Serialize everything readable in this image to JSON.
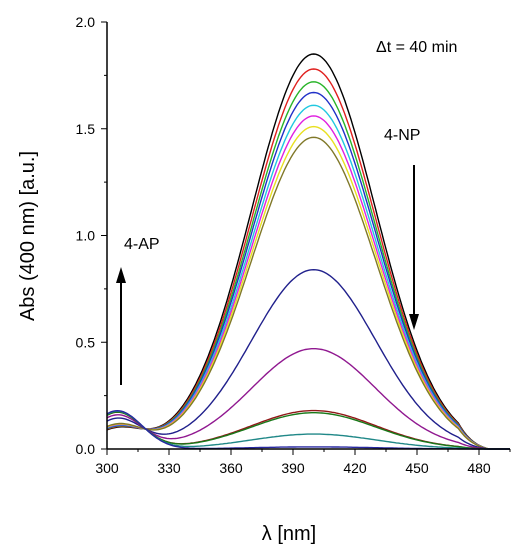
{
  "chart_data": {
    "type": "line",
    "xlabel": "λ [nm]",
    "ylabel": "Abs (400 nm) [a.u.]",
    "xlim": [
      300,
      495
    ],
    "ylim": [
      0,
      2.0
    ],
    "x_ticks": [
      "300",
      "330",
      "360",
      "390",
      "420",
      "450",
      "480"
    ],
    "y_ticks": [
      "0.0",
      "0.5",
      "1.0",
      "1.5",
      "2.0"
    ],
    "grid": false,
    "annotations": {
      "time": "Δt = 40 min",
      "product": "4-AP",
      "reactant": "4-NP"
    },
    "series": [
      {
        "peak": 1.85,
        "color": "#000000"
      },
      {
        "peak": 1.78,
        "color": "#e0201e"
      },
      {
        "peak": 1.72,
        "color": "#28b428"
      },
      {
        "peak": 1.67,
        "color": "#2030c8"
      },
      {
        "peak": 1.61,
        "color": "#20c8e0"
      },
      {
        "peak": 1.56,
        "color": "#e020e0"
      },
      {
        "peak": 1.51,
        "color": "#e8e020"
      },
      {
        "peak": 1.46,
        "color": "#807828"
      },
      {
        "peak": 0.84,
        "color": "#20208c"
      },
      {
        "peak": 0.47,
        "color": "#901890"
      },
      {
        "peak": 0.18,
        "color": "#901818"
      },
      {
        "peak": 0.17,
        "color": "#187818"
      },
      {
        "peak": 0.07,
        "color": "#208888"
      },
      {
        "peak": 0.01,
        "color": "#2828a0"
      }
    ]
  }
}
